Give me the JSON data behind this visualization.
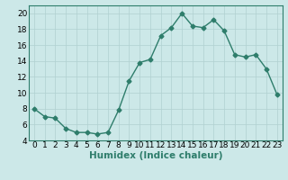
{
  "x": [
    0,
    1,
    2,
    3,
    4,
    5,
    6,
    7,
    8,
    9,
    10,
    11,
    12,
    13,
    14,
    15,
    16,
    17,
    18,
    19,
    20,
    21,
    22,
    23
  ],
  "y": [
    8,
    7,
    6.8,
    5.5,
    5,
    5,
    4.8,
    5,
    7.8,
    11.5,
    13.8,
    14.2,
    17.2,
    18.2,
    20,
    18.4,
    18.2,
    19.2,
    17.8,
    14.8,
    14.5,
    14.8,
    13,
    9.8
  ],
  "line_color": "#2e7d6b",
  "marker": "D",
  "marker_size": 2.5,
  "line_width": 1.0,
  "xlabel": "Humidex (Indice chaleur)",
  "xlim": [
    -0.5,
    23.5
  ],
  "ylim": [
    4,
    21
  ],
  "xticks": [
    0,
    1,
    2,
    3,
    4,
    5,
    6,
    7,
    8,
    9,
    10,
    11,
    12,
    13,
    14,
    15,
    16,
    17,
    18,
    19,
    20,
    21,
    22,
    23
  ],
  "yticks": [
    4,
    6,
    8,
    10,
    12,
    14,
    16,
    18,
    20
  ],
  "bg_color": "#cce8e8",
  "grid_color": "#b0d0d0",
  "label_fontsize": 6.5,
  "xlabel_fontsize": 7.5,
  "spine_color": "#2e7d6b"
}
